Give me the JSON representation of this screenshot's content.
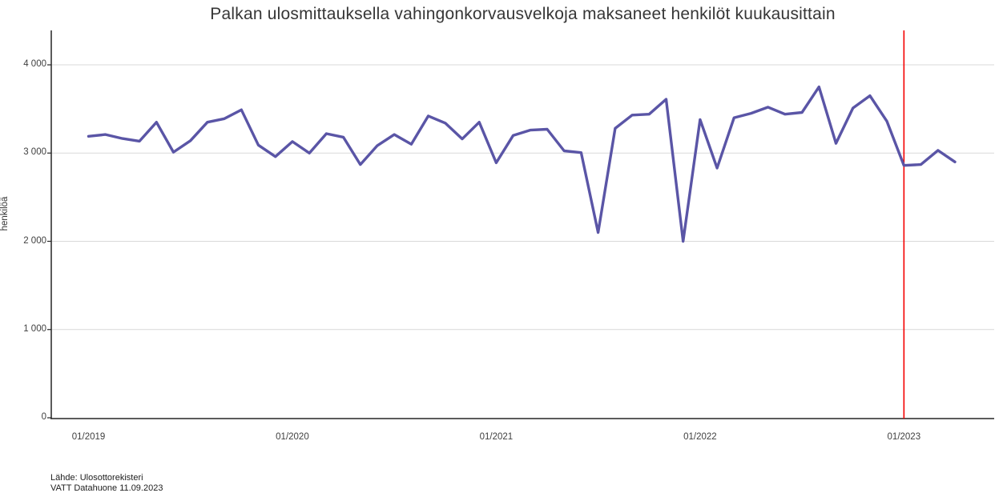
{
  "title": "Palkan ulosmittauksella vahingonkorvausvelkoja maksaneet henkilöt kuukausittain",
  "footer": {
    "line1": "Lähde: Ulosottorekisteri",
    "line2": "VATT Datahuone 11.09.2023"
  },
  "colors": {
    "line": "#5a55a6",
    "vline": "#f40000",
    "grid": "#d9d9d9",
    "axis": "#252525",
    "text": "#404040"
  },
  "chart_data": {
    "type": "line",
    "title": "Palkan ulosmittauksella vahingonkorvausvelkoja maksaneet henkilöt kuukausittain",
    "xlabel": "",
    "ylabel": "henkilöä",
    "ylim": [
      0,
      4400
    ],
    "grid": "horizontal",
    "legend": "none",
    "y_ticks": [
      {
        "label": "0",
        "value": 0
      },
      {
        "label": "1 000",
        "value": 1000
      },
      {
        "label": "2 000",
        "value": 2000
      },
      {
        "label": "3 000",
        "value": 3000
      },
      {
        "label": "4 000",
        "value": 4000
      }
    ],
    "x_ticks": [
      {
        "label": "01/2019",
        "month_index": 0
      },
      {
        "label": "01/2020",
        "month_index": 12
      },
      {
        "label": "01/2021",
        "month_index": 24
      },
      {
        "label": "01/2022",
        "month_index": 36
      },
      {
        "label": "01/2023",
        "month_index": 48
      }
    ],
    "vline": {
      "month_index": 48,
      "label": "01/2023"
    },
    "months": [
      "01/2019",
      "02/2019",
      "03/2019",
      "04/2019",
      "05/2019",
      "06/2019",
      "07/2019",
      "08/2019",
      "09/2019",
      "10/2019",
      "11/2019",
      "12/2019",
      "01/2020",
      "02/2020",
      "03/2020",
      "04/2020",
      "05/2020",
      "06/2020",
      "07/2020",
      "08/2020",
      "09/2020",
      "10/2020",
      "11/2020",
      "12/2020",
      "01/2021",
      "02/2021",
      "03/2021",
      "04/2021",
      "05/2021",
      "06/2021",
      "07/2021",
      "08/2021",
      "09/2021",
      "10/2021",
      "11/2021",
      "12/2021",
      "01/2022",
      "02/2022",
      "03/2022",
      "04/2022",
      "05/2022",
      "06/2022",
      "07/2022",
      "08/2022",
      "09/2022",
      "10/2022",
      "11/2022",
      "12/2022",
      "01/2023",
      "02/2023",
      "03/2023",
      "04/2023"
    ],
    "values": [
      3190,
      3210,
      3165,
      3135,
      3350,
      3010,
      3140,
      3350,
      3390,
      3490,
      3090,
      2960,
      3130,
      3000,
      3220,
      3180,
      2870,
      3085,
      3210,
      3100,
      3420,
      3340,
      3160,
      3350,
      2890,
      3200,
      3260,
      3270,
      3025,
      3005,
      2100,
      3280,
      3430,
      3440,
      3610,
      2000,
      3380,
      2830,
      3400,
      3450,
      3520,
      3440,
      3460,
      3750,
      3110,
      3510,
      3650,
      3360,
      2860,
      2870,
      3030,
      2900
    ]
  }
}
